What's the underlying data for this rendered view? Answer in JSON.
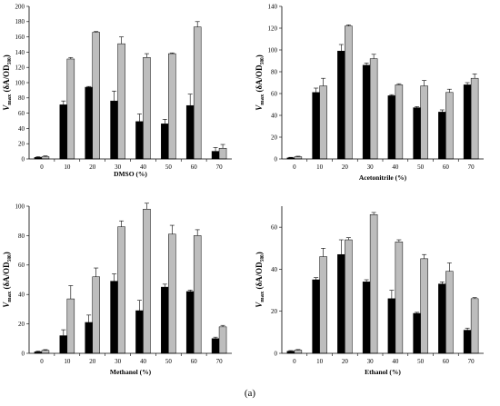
{
  "caption": "(a)",
  "colors": {
    "series_dark": "#000000",
    "series_light": "#bdbdbd",
    "axis": "#000000"
  },
  "chart_data": [
    {
      "type": "bar",
      "xlabel": "DMSO (%)",
      "ylabel_main": "V",
      "ylabel_sub": "max",
      "ylabel_rest": " (δA/OD₅₈₀)",
      "categories": [
        "0",
        "10",
        "20",
        "30",
        "40",
        "50",
        "60",
        "70"
      ],
      "ylim": [
        0,
        200
      ],
      "yticks": [
        0,
        20,
        40,
        60,
        80,
        100,
        120,
        140,
        160,
        180,
        200
      ],
      "series": [
        {
          "color": "#000000",
          "values": [
            2,
            71,
            94,
            76,
            49,
            46,
            70,
            10
          ],
          "errors": [
            1,
            5,
            1,
            13,
            10,
            6,
            15,
            5
          ]
        },
        {
          "color": "#bdbdbd",
          "values": [
            3,
            131,
            166,
            151,
            133,
            138,
            173,
            14
          ],
          "errors": [
            1,
            2,
            1,
            9,
            5,
            1,
            7,
            5
          ]
        }
      ]
    },
    {
      "type": "bar",
      "xlabel": "Acetonitrile (%)",
      "ylabel_main": "V",
      "ylabel_sub": "max",
      "ylabel_rest": " (δA/OD₅₈₀)",
      "categories": [
        "0",
        "10",
        "20",
        "30",
        "40",
        "50",
        "60",
        "70"
      ],
      "ylim": [
        0,
        140
      ],
      "yticks": [
        0,
        20,
        40,
        60,
        80,
        100,
        120,
        140
      ],
      "series": [
        {
          "color": "#000000",
          "values": [
            1,
            61,
            99,
            86,
            58,
            47,
            43,
            68
          ],
          "errors": [
            0.5,
            4,
            6,
            2,
            1,
            1,
            2,
            2
          ]
        },
        {
          "color": "#bdbdbd",
          "values": [
            2,
            67,
            122,
            92,
            68,
            67,
            61,
            74
          ],
          "errors": [
            0.5,
            7,
            1,
            4,
            1,
            5,
            3,
            4
          ]
        }
      ]
    },
    {
      "type": "bar",
      "xlabel": "Methanol (%)",
      "ylabel_main": "V",
      "ylabel_sub": "max",
      "ylabel_rest": " (δA/OD₅₈₀)",
      "categories": [
        "0",
        "10",
        "20",
        "30",
        "40",
        "50",
        "60",
        "70"
      ],
      "ylim": [
        0,
        100
      ],
      "yticks": [
        0,
        20,
        40,
        60,
        80,
        100
      ],
      "series": [
        {
          "color": "#000000",
          "values": [
            1,
            12,
            21,
            49,
            29,
            45,
            42,
            10
          ],
          "errors": [
            0.5,
            4,
            5,
            5,
            7,
            2,
            1,
            1
          ]
        },
        {
          "color": "#bdbdbd",
          "values": [
            2,
            37,
            52,
            86,
            98,
            81,
            80,
            18
          ],
          "errors": [
            0.5,
            9,
            6,
            4,
            4,
            6,
            4,
            1
          ]
        }
      ]
    },
    {
      "type": "bar",
      "xlabel": "Ethanol (%)",
      "ylabel_main": "V",
      "ylabel_sub": "max",
      "ylabel_rest": " (δA/OD₅₈₀)",
      "categories": [
        "0",
        "10",
        "20",
        "30",
        "40",
        "50",
        "60",
        "70"
      ],
      "ylim": [
        0,
        70
      ],
      "yticks": [
        0,
        20,
        40,
        60
      ],
      "series": [
        {
          "color": "#000000",
          "values": [
            1,
            35,
            47,
            34,
            26,
            19,
            33,
            11
          ],
          "errors": [
            0.3,
            1,
            7,
            1,
            4,
            0.5,
            1,
            1
          ]
        },
        {
          "color": "#bdbdbd",
          "values": [
            1.5,
            46,
            54,
            66,
            53,
            45,
            39,
            26
          ],
          "errors": [
            0.3,
            4,
            1,
            1,
            1,
            2,
            4,
            0.5
          ]
        }
      ]
    }
  ]
}
